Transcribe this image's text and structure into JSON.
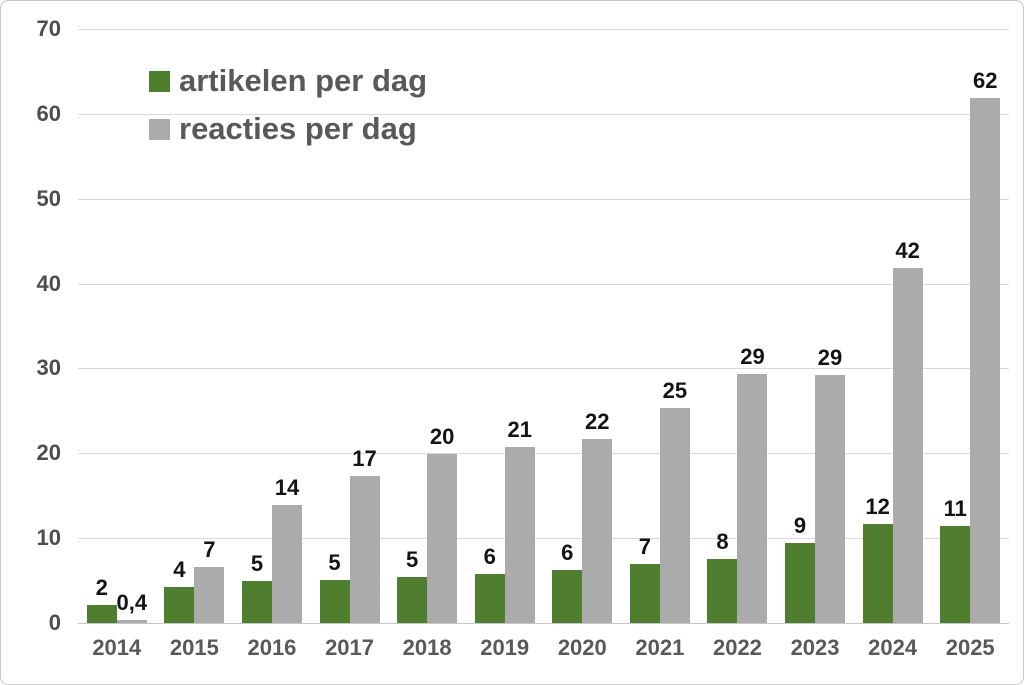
{
  "chart_data": {
    "type": "bar",
    "title": "",
    "xlabel": "",
    "ylabel": "",
    "categories": [
      "2014",
      "2015",
      "2016",
      "2017",
      "2018",
      "2019",
      "2020",
      "2021",
      "2022",
      "2023",
      "2024",
      "2025"
    ],
    "series": [
      {
        "name": "artikelen per dag",
        "color": "#4e7e2e",
        "labels": [
          "2",
          "4",
          "5",
          "5",
          "5",
          "6",
          "6",
          "7",
          "8",
          "9",
          "12",
          "11"
        ],
        "values": [
          2.1,
          4.2,
          4.9,
          5.1,
          5.4,
          5.8,
          6.3,
          7.0,
          7.6,
          9.4,
          11.7,
          11.4
        ]
      },
      {
        "name": "reacties per dag",
        "color": "#ababab",
        "labels": [
          "0,4",
          "7",
          "14",
          "17",
          "20",
          "21",
          "22",
          "25",
          "29",
          "29",
          "42",
          "62"
        ],
        "values": [
          0.4,
          6.6,
          13.9,
          17.3,
          19.9,
          20.7,
          21.7,
          25.3,
          29.3,
          29.2,
          41.8,
          61.9
        ]
      }
    ],
    "y_axis": {
      "min": 0,
      "max": 70,
      "step": 10,
      "tick_labels": [
        "0",
        "10",
        "20",
        "30",
        "40",
        "50",
        "60",
        "70"
      ]
    },
    "grid": true,
    "legend_position": "top-left",
    "styles": {
      "grid_color": "#d9d9d9",
      "baseline_color": "#c6c6c6",
      "ytick_color": "#4d4d4d",
      "xtick_color": "#595959",
      "data_label_color": "#141414",
      "legend_text_color": "#595959",
      "background": "#ffffff",
      "frame_border": "#c9c9c9"
    }
  }
}
